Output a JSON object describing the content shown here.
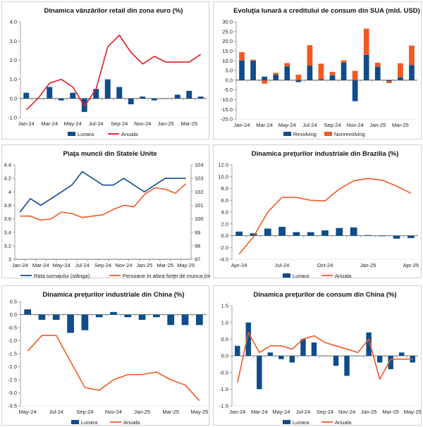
{
  "colors": {
    "bar_blue": "#0f4c8a",
    "line_red": "#e01b24",
    "orange": "#f05a22",
    "axis": "#8a8a8a",
    "zero": "#444444"
  },
  "chart_data": [
    {
      "type": "bar+line",
      "title": "Dinamica vânzărilor retail din zona euro (%)",
      "x_labels": [
        "Jan-24",
        "Feb-24",
        "Mar-24",
        "Apr-24",
        "May-24",
        "Jun-24",
        "Jul-24",
        "Aug-24",
        "Sep-24",
        "Oct-24",
        "Nov-24",
        "Dec-24",
        "Jan-25",
        "Feb-25",
        "Mar-25",
        "Apr-25"
      ],
      "x_tick_labels": [
        "Jan-24",
        "Mar-24",
        "May-24",
        "Jul-24",
        "Sep-24",
        "Nov-24",
        "Jan-25",
        "Mar-25"
      ],
      "y_ticks": [
        "-1.0",
        "0.0",
        "1.0",
        "2.0",
        "3.0",
        "4.0"
      ],
      "ylim": [
        -1,
        4
      ],
      "series": [
        {
          "name": "Lunara",
          "type": "bar",
          "values": [
            0.3,
            0.0,
            0.6,
            -0.1,
            0.3,
            -0.7,
            0.5,
            1.0,
            0.6,
            -0.3,
            0.1,
            -0.1,
            0.0,
            0.2,
            0.4,
            0.1
          ]
        },
        {
          "name": "Anuala",
          "type": "line",
          "values": [
            -0.6,
            0.0,
            0.8,
            1.0,
            0.6,
            -0.4,
            0.5,
            2.7,
            3.3,
            2.4,
            1.8,
            2.2,
            1.9,
            1.9,
            1.9,
            2.3
          ]
        }
      ],
      "legend": [
        "Lunara",
        "Anuala"
      ]
    },
    {
      "type": "stacked-bar",
      "title": "Evoluţia lunară a creditului de consum din SUA (mld. USD)",
      "x_labels": [
        "Jan-24",
        "Feb-24",
        "Mar-24",
        "Apr-24",
        "May-24",
        "Jun-24",
        "Jul-24",
        "Aug-24",
        "Sep-24",
        "Oct-24",
        "Nov-24",
        "Dec-24",
        "Jan-25",
        "Feb-25",
        "Mar-25",
        "Apr-25"
      ],
      "x_tick_labels": [
        "Jan-24",
        "Mar-24",
        "May-24",
        "Jul-24",
        "Sep-24",
        "Nov-24",
        "Jan-25",
        "Mar-25"
      ],
      "y_ticks": [
        "-20.0",
        "-15.0",
        "-10.0",
        "-5.0",
        "0.0",
        "5.0",
        "10.0",
        "15.0",
        "20.0",
        "25.0",
        "30.0"
      ],
      "ylim": [
        -20,
        30
      ],
      "series": [
        {
          "name": "Revolving",
          "values": [
            10.2,
            10.0,
            1.8,
            2.8,
            7.0,
            -1.0,
            7.5,
            0.5,
            2.5,
            9.0,
            -10.8,
            13.0,
            6.8,
            -0.5,
            1.5,
            7.8
          ]
        },
        {
          "name": "Nonrevolving",
          "values": [
            4.2,
            0.5,
            -1.8,
            1.0,
            1.8,
            2.8,
            10.5,
            8.0,
            1.8,
            1.2,
            4.8,
            13.5,
            2.2,
            -1.0,
            7.2,
            10.0
          ]
        }
      ],
      "legend": [
        "Revolving",
        "Nonrevolving"
      ]
    },
    {
      "type": "line-dual-axis",
      "title": "Piaţa muncii din Statele Unite",
      "x_labels": [
        "Jan-24",
        "Feb-24",
        "Mar-24",
        "Apr-24",
        "May-24",
        "Jun-24",
        "Jul-24",
        "Aug-24",
        "Sep-24",
        "Oct-24",
        "Nov-24",
        "Dec-24",
        "Jan-25",
        "Feb-25",
        "Mar-25",
        "Apr-25",
        "May-25"
      ],
      "x_tick_labels": [
        "Jan-24",
        "Mar-24",
        "May-24",
        "Jul-24",
        "Sep-24",
        "Nov-24",
        "Jan-25",
        "Mar-25",
        "May-25"
      ],
      "y_left_ticks": [
        "3",
        "3.2",
        "3.4",
        "3.6",
        "3.8",
        "4",
        "4.2",
        "4.4"
      ],
      "y_right_ticks": [
        "97",
        "98",
        "99",
        "100",
        "101",
        "102",
        "103",
        "104"
      ],
      "ylim_left": [
        3,
        4.4
      ],
      "ylim_right": [
        97,
        104
      ],
      "series": [
        {
          "name": "Rata somajului (stânga)",
          "axis": "left",
          "values": [
            3.7,
            3.9,
            3.8,
            3.9,
            4.0,
            4.1,
            4.3,
            4.2,
            4.1,
            4.1,
            4.2,
            4.1,
            4.0,
            4.1,
            4.2,
            4.2,
            4.2
          ]
        },
        {
          "name": "Persoane în afara forţei de munca (mil.)",
          "axis": "right",
          "values": [
            100.2,
            100.2,
            99.9,
            100.0,
            100.5,
            100.4,
            100.1,
            100.2,
            100.3,
            100.7,
            101.0,
            100.9,
            101.8,
            102.3,
            102.2,
            101.9,
            102.6
          ]
        }
      ],
      "legend": [
        "Rata somajului (stânga)",
        "Persoane în afara forţei de munca (mil.)"
      ]
    },
    {
      "type": "bar+line",
      "title": "Dinamica preţurilor industriale din Brazilia (%)",
      "x_labels": [
        "Apr-24",
        "May-24",
        "Jun-24",
        "Jul-24",
        "Aug-24",
        "Sep-24",
        "Oct-24",
        "Nov-24",
        "Dec-24",
        "Jan-25",
        "Feb-25",
        "Mar-25",
        "Apr-25"
      ],
      "x_tick_labels": [
        "Apr-24",
        "Jul-24",
        "Oct-24",
        "Jan-25",
        "Apr-25"
      ],
      "y_ticks": [
        "-4.0",
        "-2.0",
        "0.0",
        "2.0",
        "4.0",
        "6.0",
        "8.0",
        "10.0",
        "12.0"
      ],
      "ylim": [
        -4,
        12
      ],
      "series": [
        {
          "name": "Lunara",
          "type": "bar",
          "values": [
            0.7,
            0.4,
            1.2,
            1.5,
            0.6,
            0.6,
            0.9,
            1.3,
            1.4,
            0.1,
            -0.1,
            -0.5,
            -0.4
          ]
        },
        {
          "name": "Anuala",
          "type": "line",
          "values": [
            -3.1,
            -0.2,
            4.0,
            6.5,
            6.5,
            6.0,
            5.9,
            7.9,
            9.3,
            9.7,
            9.4,
            8.4,
            7.2
          ]
        }
      ],
      "legend": [
        "Lunara",
        "Anuala"
      ]
    },
    {
      "type": "bar+line",
      "title": "Dinamica preţurilor industriale din China (%)",
      "x_labels": [
        "May-24",
        "Jun-24",
        "Jul-24",
        "Aug-24",
        "Sep-24",
        "Oct-24",
        "Nov-24",
        "Dec-24",
        "Jan-25",
        "Feb-25",
        "Mar-25",
        "Apr-25",
        "May-25"
      ],
      "x_tick_labels": [
        "May-24",
        "Jul-24",
        "Sep-24",
        "Nov-24",
        "Jan-25",
        "Mar-25",
        "May-25"
      ],
      "y_ticks": [
        "-3.5",
        "-3.0",
        "-2.5",
        "-2.0",
        "-1.5",
        "-1.0",
        "-0.5",
        "0.0",
        "0.5"
      ],
      "ylim": [
        -3.5,
        0.5
      ],
      "series": [
        {
          "name": "Lunara",
          "type": "bar",
          "values": [
            0.2,
            -0.2,
            -0.2,
            -0.7,
            -0.6,
            -0.1,
            0.1,
            -0.1,
            -0.2,
            -0.1,
            -0.4,
            -0.4,
            -0.4
          ]
        },
        {
          "name": "Anuala",
          "type": "line",
          "values": [
            -1.4,
            -0.8,
            -0.8,
            -1.8,
            -2.8,
            -2.9,
            -2.5,
            -2.3,
            -2.3,
            -2.2,
            -2.5,
            -2.7,
            -3.3
          ]
        }
      ],
      "legend": [
        "Lunara",
        "Anuala"
      ]
    },
    {
      "type": "bar+line",
      "title": "Dinamica preţurilor de consum din China (%)",
      "x_labels": [
        "Jan-24",
        "Feb-24",
        "Mar-24",
        "Apr-24",
        "May-24",
        "Jun-24",
        "Jul-24",
        "Aug-24",
        "Sep-24",
        "Oct-24",
        "Nov-24",
        "Dec-24",
        "Jan-25",
        "Feb-25",
        "Mar-25",
        "Apr-25",
        "May-25"
      ],
      "x_tick_labels": [
        "Jan-24",
        "Mar-24",
        "May-24",
        "Jul-24",
        "Sep-24",
        "Nov-24",
        "Jan-25",
        "Mar-25",
        "May-25"
      ],
      "y_ticks": [
        "-1.5",
        "-1.0",
        "-0.5",
        "0.0",
        "0.5",
        "1.0",
        "1.5"
      ],
      "ylim": [
        -1.5,
        1.5
      ],
      "series": [
        {
          "name": "Lunara",
          "type": "bar",
          "values": [
            0.3,
            1.0,
            -1.0,
            0.1,
            -0.1,
            -0.2,
            0.5,
            0.4,
            0.0,
            -0.3,
            -0.6,
            0.0,
            0.7,
            -0.2,
            -0.4,
            0.1,
            -0.2
          ]
        },
        {
          "name": "Anuala",
          "type": "line",
          "values": [
            -0.8,
            0.7,
            0.1,
            0.3,
            0.3,
            0.2,
            0.5,
            0.6,
            0.4,
            0.3,
            0.2,
            0.1,
            0.5,
            -0.7,
            -0.1,
            -0.1,
            -0.1
          ]
        }
      ],
      "legend": [
        "Lunara",
        "Anuala"
      ]
    }
  ]
}
